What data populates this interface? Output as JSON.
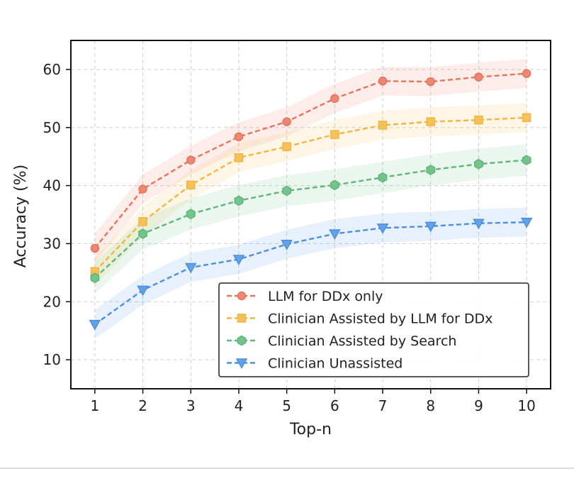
{
  "chart_data": {
    "type": "line",
    "xlabel": "Top-n",
    "ylabel": "Accuracy (%)",
    "x": [
      1,
      2,
      3,
      4,
      5,
      6,
      7,
      8,
      9,
      10
    ],
    "xlim": [
      0.5,
      10.5
    ],
    "ylim": [
      5,
      65
    ],
    "xticks": [
      "1",
      "2",
      "3",
      "4",
      "5",
      "6",
      "7",
      "8",
      "9",
      "10"
    ],
    "yticks": [
      "10",
      "20",
      "30",
      "40",
      "50",
      "60"
    ],
    "ytick_values": [
      10,
      20,
      30,
      40,
      50,
      60
    ],
    "grid": true,
    "legend_position": "lower-right",
    "series": [
      {
        "name": "LLM for DDx only",
        "color": "#e8735a",
        "marker": "circle",
        "values": [
          29.2,
          39.4,
          44.4,
          48.4,
          51.0,
          55.0,
          58.0,
          57.9,
          58.7,
          59.3
        ],
        "band": 2.5
      },
      {
        "name": "Clinician Assisted by LLM for DDx",
        "color": "#f2b63d",
        "marker": "square",
        "values": [
          25.2,
          33.8,
          40.1,
          44.8,
          46.7,
          48.8,
          50.4,
          51.0,
          51.3,
          51.7
        ],
        "band": 2.5
      },
      {
        "name": "Clinician Assisted by Search",
        "color": "#5cb878",
        "marker": "hexagon",
        "values": [
          24.1,
          31.7,
          35.1,
          37.4,
          39.1,
          40.1,
          41.4,
          42.7,
          43.7,
          44.4
        ],
        "band": 2.7
      },
      {
        "name": "Clinician Unassisted",
        "color": "#4a90e2",
        "marker": "triangle-down",
        "values": [
          16.1,
          22.0,
          25.9,
          27.3,
          29.9,
          31.7,
          32.7,
          33.0,
          33.5,
          33.7
        ],
        "band": 2.5
      }
    ]
  }
}
